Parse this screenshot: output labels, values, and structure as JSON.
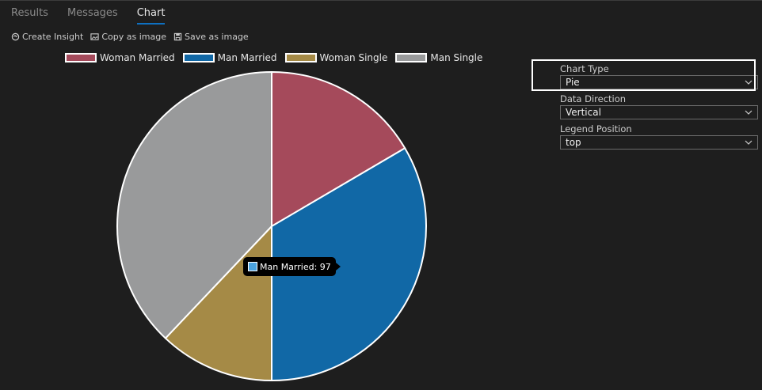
{
  "tabs": [
    {
      "label": "Results"
    },
    {
      "label": "Messages"
    },
    {
      "label": "Chart"
    }
  ],
  "toolbar": {
    "create_insight": "Create Insight",
    "copy_image": "Copy as image",
    "save_image": "Save as image"
  },
  "settings": {
    "chart_type_label": "Chart Type",
    "chart_type_value": "Pie",
    "data_direction_label": "Data Direction",
    "data_direction_value": "Vertical",
    "legend_position_label": "Legend Position",
    "legend_position_value": "top"
  },
  "tooltip": {
    "text": "Man Married: 97"
  },
  "chart_data": {
    "type": "pie",
    "categories": [
      "Woman Married",
      "Man Married",
      "Woman Single",
      "Man Single"
    ],
    "values": [
      48,
      97,
      35,
      110
    ],
    "colors": [
      "#a54a5b",
      "#1168a6",
      "#a58a46",
      "#999a9b"
    ],
    "legend": "top",
    "title": ""
  }
}
